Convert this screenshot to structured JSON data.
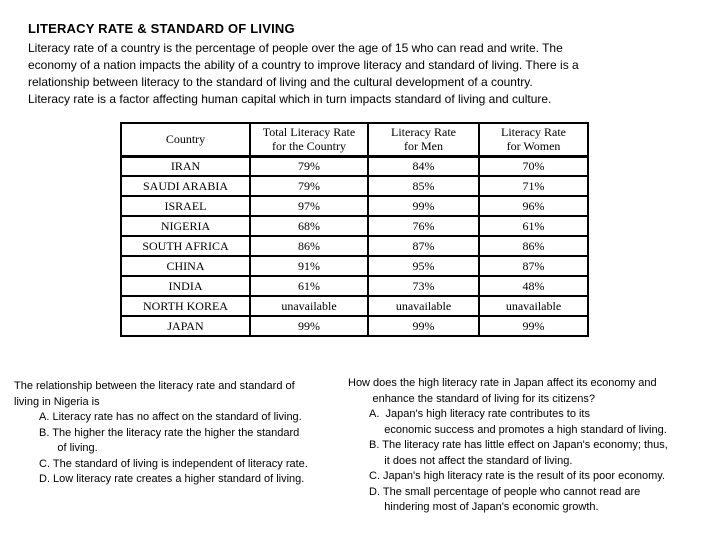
{
  "title": "LITERACY RATE & STANDARD OF LIVING",
  "intro": "Literacy rate of a country is the percentage of people over the age of 15 who can read and write. The\neconomy of a nation impacts the ability of a country to improve literacy and standard of living. There is a\nrelationship between literacy to the standard of living and the cultural development of a country.\nLiteracy rate is a factor affecting human capital which in turn impacts standard of living and culture.",
  "table": {
    "headers": [
      "Country",
      "Total Literacy Rate\nfor the Country",
      "Literacy Rate\nfor Men",
      "Literacy Rate\nfor Women"
    ],
    "rows": [
      [
        "IRAN",
        "79%",
        "84%",
        "70%"
      ],
      [
        "SAUDI ARABIA",
        "79%",
        "85%",
        "71%"
      ],
      [
        "ISRAEL",
        "97%",
        "99%",
        "96%"
      ],
      [
        "NIGERIA",
        "68%",
        "76%",
        "61%"
      ],
      [
        "SOUTH AFRICA",
        "86%",
        "87%",
        "86%"
      ],
      [
        "CHINA",
        "91%",
        "95%",
        "87%"
      ],
      [
        "INDIA",
        "61%",
        "73%",
        "48%"
      ],
      [
        "NORTH KOREA",
        "unavailable",
        "unavailable",
        "unavailable"
      ],
      [
        "JAPAN",
        "99%",
        "99%",
        "99%"
      ]
    ]
  },
  "questions": [
    {
      "stem": "The relationship between the literacy rate and standard of\nliving in Nigeria is",
      "options": [
        "A. Literacy rate has no affect on the standard of living.",
        "B. The higher the literacy rate the higher the standard\n      of living.",
        "C. The standard of living is independent of literacy rate.",
        "D. Low literacy rate creates a higher standard of living."
      ]
    },
    {
      "stem": "How does the high literacy rate in Japan affect its economy and\n        enhance the standard of living for its citizens?",
      "options": [
        "A.  Japan's high literacy rate contributes to its\n     economic success and promotes a high standard of living.",
        "B. The literacy rate has little effect on Japan's economy; thus,\n     it does not affect the standard of living.",
        "C. Japan's high literacy rate is the result of its poor economy.",
        "D. The small percentage of people who cannot read are\n     hindering most of Japan's economic growth."
      ]
    }
  ]
}
